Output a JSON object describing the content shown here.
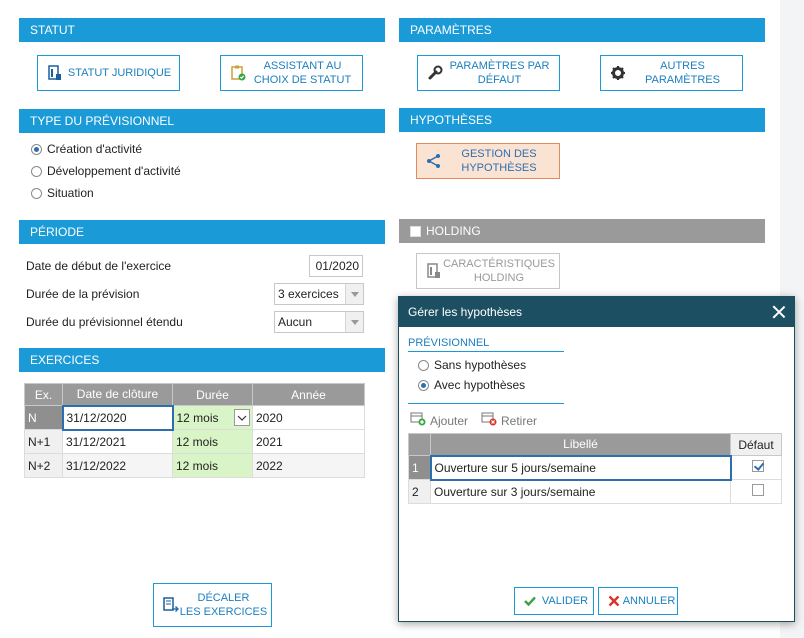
{
  "statut": {
    "header": "STATUT",
    "btn_statut_juridique": "STATUT JURIDIQUE",
    "btn_assistant_line1": "ASSISTANT AU",
    "btn_assistant_line2": "CHOIX DE STATUT"
  },
  "parametres": {
    "header": "PARAMÈTRES",
    "btn_defaut_line1": "PARAMÈTRES PAR",
    "btn_defaut_line2": "DÉFAUT",
    "btn_autres_line1": "AUTRES",
    "btn_autres_line2": "PARAMÈTRES"
  },
  "type_previsionnel": {
    "header": "TYPE DU PRÉVISIONNEL",
    "options": [
      "Création d'activité",
      "Développement d'activité",
      "Situation"
    ],
    "selected_index": 0
  },
  "hypotheses": {
    "header": "HYPOTHÈSES",
    "btn_gestion_line1": "GESTION DES",
    "btn_gestion_line2": "HYPOTHÈSES"
  },
  "periode": {
    "header": "PÉRIODE",
    "date_debut_label": "Date de début de l'exercice",
    "date_debut_value": "01/2020",
    "duree_prevision_label": "Durée de la prévision",
    "duree_prevision_value": "3 exercices",
    "duree_etendu_label": "Durée du prévisionnel étendu",
    "duree_etendu_value": "Aucun"
  },
  "holding": {
    "header": "HOLDING",
    "btn_line1": "CARACTÉRISTIQUES",
    "btn_line2": "HOLDING"
  },
  "exercices": {
    "header": "EXERCICES",
    "columns": [
      "Ex.",
      "Date de clôture",
      "Durée",
      "Année"
    ],
    "rows": [
      {
        "ex": "N",
        "date": "31/12/2020",
        "duree": "12 mois",
        "annee": "2020"
      },
      {
        "ex": "N+1",
        "date": "31/12/2021",
        "duree": "12 mois",
        "annee": "2021"
      },
      {
        "ex": "N+2",
        "date": "31/12/2022",
        "duree": "12 mois",
        "annee": "2022"
      }
    ],
    "btn_decaler_line1": "DÉCALER",
    "btn_decaler_line2": "LES EXERCICES"
  },
  "dialog": {
    "title": "Gérer les hypothèses",
    "section": "PRÉVISIONNEL",
    "options": [
      "Sans hypothèses",
      "Avec hypothèses"
    ],
    "selected_index": 1,
    "btn_ajouter": "Ajouter",
    "btn_retirer": "Retirer",
    "columns": [
      "Libellé",
      "Défaut"
    ],
    "rows": [
      {
        "num": "1",
        "libelle": "Ouverture sur 5 jours/semaine",
        "defaut": true
      },
      {
        "num": "2",
        "libelle": "Ouverture sur 3 jours/semaine",
        "defaut": false
      }
    ],
    "btn_valider": "VALIDER",
    "btn_annuler": "ANNULER"
  },
  "colors": {
    "accent": "#1a9bd7",
    "dialog_title": "#1d4f63",
    "highlight_green": "#d9f5c7",
    "orange_button": "#fbe3d3"
  }
}
